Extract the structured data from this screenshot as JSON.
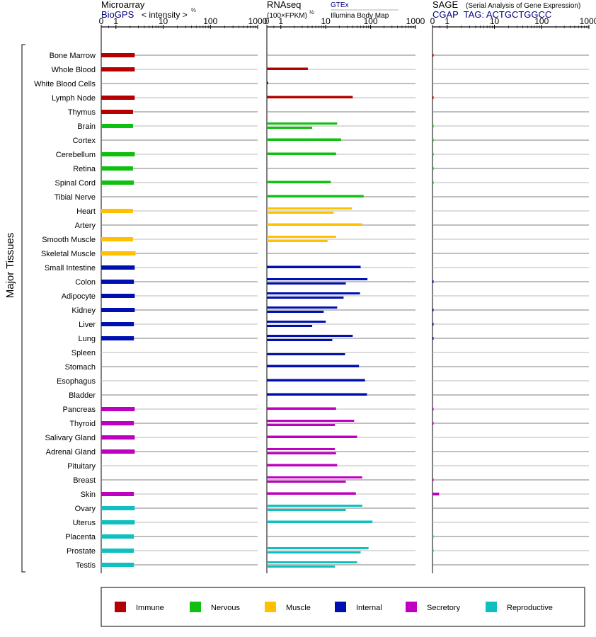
{
  "header": {
    "microarray": {
      "title": "Microarray",
      "source": "BioGPS",
      "intensity_label": "< intensity >",
      "intensity_exp": "⅔"
    },
    "rnaseq": {
      "title": "RNAseq",
      "unit": "(100×FPKM)",
      "unit_exp": "½",
      "gtex": "GTEx",
      "illumina": "Illumina Body Map"
    },
    "sage": {
      "title": "SAGE",
      "subtitle": "(Serial Analysis of Gene Expression)",
      "tag": "CGAP  TAG: ACTGCTGGCC"
    }
  },
  "axis_ticks": [
    "0",
    "1",
    "10",
    "100",
    "1000"
  ],
  "ylabel": "Major Tissues",
  "colors": {
    "Immune": "#b40000",
    "Nervous": "#10c010",
    "Muscle": "#ffc000",
    "Internal": "#0010b0",
    "Secretory": "#c000c0",
    "Reproductive": "#10c0c0"
  },
  "legend": [
    {
      "label": "Immune",
      "color": "#b40000"
    },
    {
      "label": "Nervous",
      "color": "#10c010"
    },
    {
      "label": "Muscle",
      "color": "#ffc000"
    },
    {
      "label": "Internal",
      "color": "#0010b0"
    },
    {
      "label": "Secretory",
      "color": "#c000c0"
    },
    {
      "label": "Reproductive",
      "color": "#10c0c0"
    }
  ],
  "chart_data": {
    "type": "bar",
    "orientation": "horizontal",
    "xscale": "custom (0, 1, 10, 100, 1000 tick labels)",
    "panels": [
      "Microarray",
      "RNAseq",
      "SAGE"
    ],
    "categories": [
      "Bone Marrow",
      "Whole Blood",
      "White Blood Cells",
      "Lymph Node",
      "Thymus",
      "Brain",
      "Cortex",
      "Cerebellum",
      "Retina",
      "Spinal Cord",
      "Tibial Nerve",
      "Heart",
      "Artery",
      "Smooth Muscle",
      "Skeletal Muscle",
      "Small Intestine",
      "Colon",
      "Adipocyte",
      "Kidney",
      "Liver",
      "Lung",
      "Spleen",
      "Stomach",
      "Esophagus",
      "Bladder",
      "Pancreas",
      "Thyroid",
      "Salivary Gland",
      "Adrenal Gland",
      "Pituitary",
      "Breast",
      "Skin",
      "Ovary",
      "Uterus",
      "Placenta",
      "Prostate",
      "Testis"
    ],
    "groups": [
      "Immune",
      "Immune",
      "Immune",
      "Immune",
      "Immune",
      "Nervous",
      "Nervous",
      "Nervous",
      "Nervous",
      "Nervous",
      "Nervous",
      "Muscle",
      "Muscle",
      "Muscle",
      "Muscle",
      "Internal",
      "Internal",
      "Internal",
      "Internal",
      "Internal",
      "Internal",
      "Internal",
      "Internal",
      "Internal",
      "Internal",
      "Secretory",
      "Secretory",
      "Secretory",
      "Secretory",
      "Secretory",
      "Secretory",
      "Secretory",
      "Reproductive",
      "Reproductive",
      "Reproductive",
      "Reproductive",
      "Reproductive"
    ],
    "microarray": [
      2.5,
      2.5,
      null,
      2.5,
      2.3,
      2.3,
      null,
      2.5,
      2.3,
      2.4,
      null,
      2.3,
      null,
      2.3,
      2.6,
      2.5,
      2.4,
      2.5,
      2.5,
      2.4,
      2.4,
      null,
      null,
      null,
      null,
      2.5,
      2.4,
      2.5,
      2.5,
      null,
      null,
      2.4,
      2.5,
      2.5,
      2.4,
      2.4,
      2.4
    ],
    "rnaseq_gtex": [
      null,
      4,
      0.1,
      40,
      null,
      18,
      22,
      17,
      null,
      13,
      70,
      38,
      65,
      17,
      null,
      60,
      85,
      58,
      18,
      10,
      40,
      null,
      55,
      75,
      83,
      17,
      43,
      50,
      16,
      18,
      65,
      47,
      65,
      110,
      null,
      90,
      50
    ],
    "rnaseq_ibm": [
      null,
      null,
      null,
      null,
      null,
      5,
      null,
      null,
      null,
      null,
      null,
      15,
      null,
      11,
      null,
      null,
      28,
      25,
      9,
      5,
      14,
      27,
      null,
      null,
      null,
      null,
      16,
      null,
      17,
      null,
      28,
      null,
      28,
      null,
      null,
      60,
      16
    ],
    "sage": [
      0.05,
      null,
      null,
      0.05,
      null,
      0.03,
      0.03,
      0.03,
      0.03,
      0.03,
      null,
      null,
      null,
      null,
      null,
      null,
      0.05,
      null,
      0.05,
      0.05,
      0.05,
      null,
      null,
      null,
      null,
      0.05,
      0.05,
      null,
      null,
      null,
      0.03,
      0.45,
      null,
      null,
      0.03,
      0.03,
      null
    ]
  }
}
